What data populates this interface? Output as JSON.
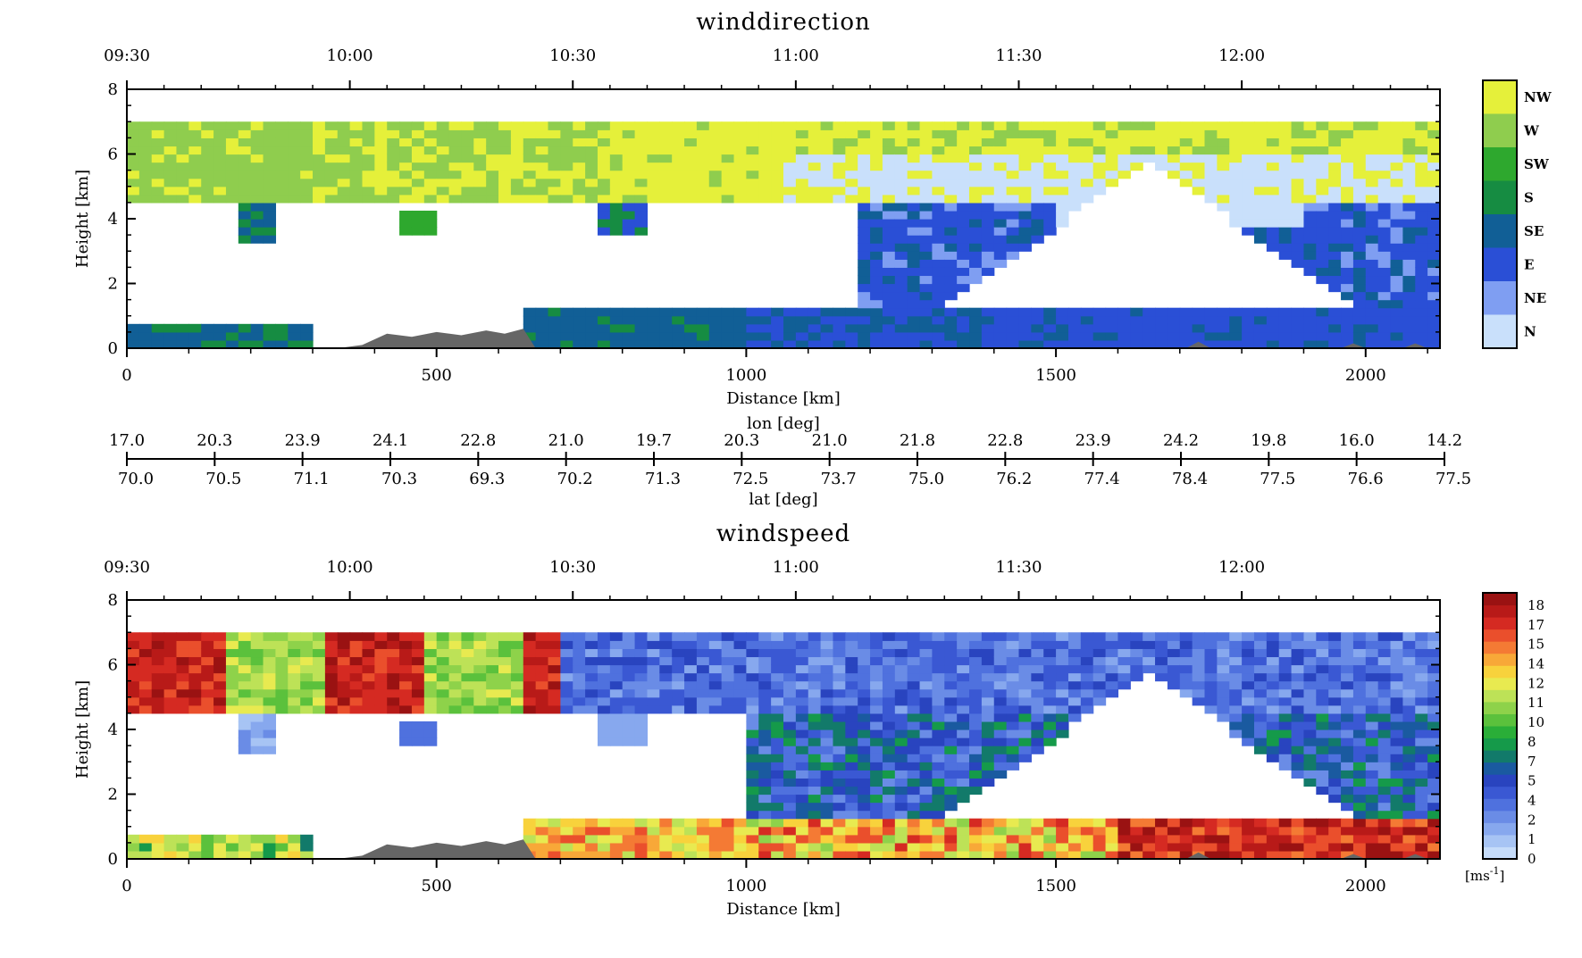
{
  "chart_data": [
    {
      "type": "heatmap",
      "title": "winddirection",
      "xlabel": "Distance [km]",
      "ylabel": "Height [km]",
      "xlim": [
        0,
        2120
      ],
      "ylim": [
        0,
        8
      ],
      "x_ticks": [
        "0",
        "500",
        "1000",
        "1500",
        "2000"
      ],
      "y_ticks": [
        "0",
        "2",
        "4",
        "6",
        "8"
      ],
      "time_ticks": [
        {
          "label": "09:30",
          "distance": 0
        },
        {
          "label": "10:00",
          "distance": 360
        },
        {
          "label": "10:30",
          "distance": 720
        },
        {
          "label": "11:00",
          "distance": 1080
        },
        {
          "label": "11:30",
          "distance": 1440
        },
        {
          "label": "12:00",
          "distance": 1800
        }
      ],
      "legend": {
        "position": "right",
        "entries": [
          {
            "label": "NW",
            "color": "#e5f03a"
          },
          {
            "label": "W",
            "color": "#8fcd4e"
          },
          {
            "label": "SW",
            "color": "#2ea82e"
          },
          {
            "label": "S",
            "color": "#168c42"
          },
          {
            "label": "SE",
            "color": "#115f96"
          },
          {
            "label": "E",
            "color": "#2a4fd6"
          },
          {
            "label": "NE",
            "color": "#7f9ef2"
          },
          {
            "label": "N",
            "color": "#c9e0fb"
          }
        ]
      }
    },
    {
      "type": "heatmap",
      "title": "windspeed",
      "xlabel": "Distance [km]",
      "ylabel": "Height [km]",
      "xlim": [
        0,
        2120
      ],
      "ylim": [
        0,
        8
      ],
      "x_ticks": [
        "0",
        "500",
        "1000",
        "1500",
        "2000"
      ],
      "y_ticks": [
        "0",
        "2",
        "4",
        "6",
        "8"
      ],
      "time_ticks": [
        {
          "label": "09:30",
          "distance": 0
        },
        {
          "label": "10:00",
          "distance": 360
        },
        {
          "label": "10:30",
          "distance": 720
        },
        {
          "label": "11:00",
          "distance": 1080
        },
        {
          "label": "11:30",
          "distance": 1440
        },
        {
          "label": "12:00",
          "distance": 1800
        }
      ],
      "colorbar": {
        "unit": "[ms",
        "unit_sup": "-1",
        "unit_close": "]",
        "tick_labels": [
          "0",
          "1",
          "2",
          "4",
          "5",
          "7",
          "8",
          "10",
          "11",
          "12",
          "14",
          "15",
          "17",
          "18"
        ],
        "colors": [
          "#c6dcfa",
          "#a7c4f4",
          "#87a8ee",
          "#6a8ce6",
          "#4f71de",
          "#3a58d3",
          "#2944bf",
          "#1a5aa0",
          "#127a6a",
          "#159a4a",
          "#2aae38",
          "#5bc13c",
          "#8ed24a",
          "#bde257",
          "#e8ea50",
          "#f8d23c",
          "#f8a838",
          "#f47a34",
          "#ea4f2c",
          "#d52a22",
          "#b81a18",
          "#9a1212"
        ]
      }
    }
  ],
  "geo_axis": {
    "lon_label": "lon [deg]",
    "lat_label": "lat [deg]",
    "lon_values": [
      "17.0",
      "20.3",
      "23.9",
      "24.1",
      "22.8",
      "21.0",
      "19.7",
      "20.3",
      "21.0",
      "21.8",
      "22.8",
      "23.9",
      "24.2",
      "19.8",
      "16.0",
      "14.2"
    ],
    "lat_values": [
      "70.0",
      "70.5",
      "71.1",
      "70.3",
      "69.3",
      "70.2",
      "71.3",
      "72.5",
      "73.7",
      "75.0",
      "76.2",
      "77.4",
      "78.4",
      "77.5",
      "76.6",
      "77.5"
    ]
  },
  "terrain_color": "#666666"
}
